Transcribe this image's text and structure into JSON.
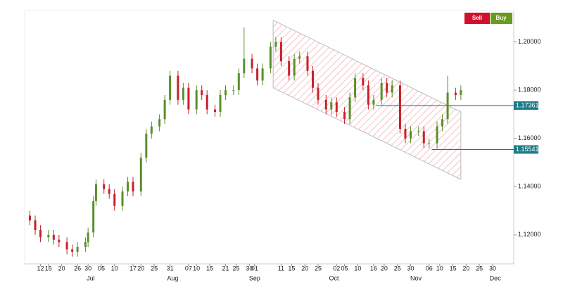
{
  "chart_data": {
    "type": "candlestick",
    "buttons": [
      "Sell",
      "Buy"
    ],
    "up_color": "#5a8f29",
    "down_color": "#c8202a",
    "x": [
      "Jun 8",
      "Jun 10",
      "Jun 12",
      "Jun 15",
      "Jun 17",
      "Jun 19",
      "Jun 22",
      "Jun 24",
      "Jun 26",
      "Jun 29",
      "Jun 30",
      "Jul 2",
      "Jul 3",
      "Jul 6",
      "Jul 8",
      "Jul 10",
      "Jul 13",
      "Jul 15",
      "Jul 17",
      "Jul 20",
      "Jul 22",
      "Jul 24",
      "Jul 27",
      "Jul 29",
      "Jul 31",
      "Aug 3",
      "Aug 5",
      "Aug 7",
      "Aug 10",
      "Aug 12",
      "Aug 14",
      "Aug 17",
      "Aug 19",
      "Aug 21",
      "Aug 24",
      "Aug 26",
      "Aug 28",
      "Aug 31",
      "Sep 2",
      "Sep 4",
      "Sep 7",
      "Sep 9",
      "Sep 11",
      "Sep 14",
      "Sep 16",
      "Sep 18",
      "Sep 21",
      "Sep 23",
      "Sep 25",
      "Sep 28",
      "Sep 30",
      "Oct 2",
      "Oct 5",
      "Oct 7",
      "Oct 9",
      "Oct 12",
      "Oct 14",
      "Oct 16",
      "Oct 19",
      "Oct 21",
      "Oct 23",
      "Oct 26",
      "Oct 28",
      "Oct 30",
      "Nov 2",
      "Nov 4",
      "Nov 6",
      "Nov 9",
      "Nov 11",
      "Nov 13",
      "Nov 16",
      "Nov 18"
    ],
    "open": [
      1.128,
      1.126,
      1.122,
      1.119,
      1.12,
      1.118,
      1.117,
      1.114,
      1.113,
      1.115,
      1.117,
      1.121,
      1.134,
      1.141,
      1.139,
      1.137,
      1.132,
      1.138,
      1.142,
      1.138,
      1.152,
      1.162,
      1.165,
      1.168,
      1.176,
      1.186,
      1.176,
      1.181,
      1.172,
      1.18,
      1.178,
      1.172,
      1.171,
      1.178,
      1.18,
      1.18,
      1.187,
      1.193,
      1.189,
      1.184,
      1.189,
      1.198,
      1.2,
      1.192,
      1.186,
      1.193,
      1.194,
      1.188,
      1.181,
      1.176,
      1.172,
      1.175,
      1.171,
      1.168,
      1.177,
      1.185,
      1.182,
      1.174,
      1.176,
      1.183,
      1.179,
      1.182,
      1.164,
      1.16,
      1.163,
      1.163,
      1.158,
      1.158,
      1.165,
      1.168,
      1.179,
      1.178
    ],
    "high": [
      1.13,
      1.128,
      1.124,
      1.122,
      1.122,
      1.12,
      1.119,
      1.116,
      1.117,
      1.119,
      1.123,
      1.136,
      1.143,
      1.143,
      1.141,
      1.139,
      1.14,
      1.144,
      1.144,
      1.154,
      1.164,
      1.167,
      1.17,
      1.178,
      1.188,
      1.188,
      1.183,
      1.183,
      1.182,
      1.182,
      1.18,
      1.174,
      1.18,
      1.182,
      1.182,
      1.189,
      1.206,
      1.195,
      1.191,
      1.191,
      1.2,
      1.202,
      1.202,
      1.194,
      1.195,
      1.196,
      1.196,
      1.19,
      1.183,
      1.178,
      1.177,
      1.177,
      1.173,
      1.179,
      1.187,
      1.187,
      1.184,
      1.178,
      1.185,
      1.185,
      1.184,
      1.184,
      1.166,
      1.165,
      1.165,
      1.165,
      1.16,
      1.167,
      1.17,
      1.186,
      1.181,
      1.182
    ],
    "low": [
      1.124,
      1.12,
      1.117,
      1.117,
      1.116,
      1.115,
      1.112,
      1.111,
      1.111,
      1.113,
      1.115,
      1.119,
      1.132,
      1.137,
      1.135,
      1.13,
      1.13,
      1.136,
      1.136,
      1.136,
      1.15,
      1.16,
      1.163,
      1.166,
      1.174,
      1.174,
      1.174,
      1.17,
      1.17,
      1.176,
      1.17,
      1.169,
      1.169,
      1.176,
      1.178,
      1.178,
      1.185,
      1.187,
      1.182,
      1.182,
      1.187,
      1.196,
      1.19,
      1.184,
      1.184,
      1.191,
      1.186,
      1.179,
      1.174,
      1.17,
      1.17,
      1.169,
      1.166,
      1.166,
      1.175,
      1.18,
      1.172,
      1.172,
      1.174,
      1.177,
      1.177,
      1.162,
      1.158,
      1.158,
      1.161,
      1.156,
      1.156,
      1.156,
      1.163,
      1.166,
      1.176,
      1.176
    ],
    "close": [
      1.126,
      1.122,
      1.119,
      1.12,
      1.118,
      1.117,
      1.114,
      1.113,
      1.115,
      1.117,
      1.121,
      1.134,
      1.141,
      1.139,
      1.137,
      1.132,
      1.138,
      1.142,
      1.138,
      1.152,
      1.162,
      1.165,
      1.168,
      1.176,
      1.186,
      1.176,
      1.181,
      1.172,
      1.18,
      1.178,
      1.172,
      1.171,
      1.178,
      1.18,
      1.18,
      1.187,
      1.193,
      1.189,
      1.184,
      1.189,
      1.198,
      1.2,
      1.192,
      1.186,
      1.193,
      1.194,
      1.188,
      1.181,
      1.176,
      1.172,
      1.175,
      1.171,
      1.168,
      1.177,
      1.185,
      1.182,
      1.174,
      1.176,
      1.183,
      1.179,
      1.182,
      1.164,
      1.16,
      1.163,
      1.163,
      1.158,
      1.158,
      1.165,
      1.168,
      1.179,
      1.178,
      1.18
    ],
    "xlim": [
      "Jun 6",
      "Dec 8"
    ],
    "ylim": [
      1.108,
      1.213
    ],
    "yticks": [
      {
        "value": 1.12,
        "label": "1.12000"
      },
      {
        "value": 1.14,
        "label": "1.14000"
      },
      {
        "value": 1.16,
        "label": "1.16000"
      },
      {
        "value": 1.18,
        "label": "1.18000"
      },
      {
        "value": 1.2,
        "label": "1.20000"
      }
    ],
    "xticks": [
      {
        "value": "Jun 12",
        "label": "12"
      },
      {
        "value": "Jun 15",
        "label": "15"
      },
      {
        "value": "Jun 20",
        "label": "20"
      },
      {
        "value": "Jun 26",
        "label": "26"
      },
      {
        "value": "Jun 30",
        "label": "30"
      },
      {
        "value": "Jul 5",
        "label": "05"
      },
      {
        "value": "Jul 10",
        "label": "10"
      },
      {
        "value": "Jul 17",
        "label": "17"
      },
      {
        "value": "Jul 20",
        "label": "20"
      },
      {
        "value": "Jul 25",
        "label": "25"
      },
      {
        "value": "Jul 31",
        "label": "31"
      },
      {
        "value": "Aug 7",
        "label": "07"
      },
      {
        "value": "Aug 10",
        "label": "10"
      },
      {
        "value": "Aug 15",
        "label": "15"
      },
      {
        "value": "Aug 21",
        "label": "21"
      },
      {
        "value": "Aug 25",
        "label": "25"
      },
      {
        "value": "Aug 30",
        "label": "30"
      },
      {
        "value": "Sep 1",
        "label": "01"
      },
      {
        "value": "Sep 11",
        "label": "11"
      },
      {
        "value": "Sep 15",
        "label": "15"
      },
      {
        "value": "Sep 20",
        "label": "20"
      },
      {
        "value": "Sep 25",
        "label": "25"
      },
      {
        "value": "Oct 2",
        "label": "02"
      },
      {
        "value": "Oct 5",
        "label": "05"
      },
      {
        "value": "Oct 10",
        "label": "10"
      },
      {
        "value": "Oct 16",
        "label": "16"
      },
      {
        "value": "Oct 20",
        "label": "20"
      },
      {
        "value": "Oct 25",
        "label": "25"
      },
      {
        "value": "Oct 30",
        "label": "30"
      },
      {
        "value": "Nov 6",
        "label": "06"
      },
      {
        "value": "Nov 10",
        "label": "10"
      },
      {
        "value": "Nov 15",
        "label": "15"
      },
      {
        "value": "Nov 20",
        "label": "20"
      },
      {
        "value": "Nov 25",
        "label": "25"
      },
      {
        "value": "Nov 30",
        "label": "30"
      }
    ],
    "month_ticks": [
      {
        "value": "Jul 1",
        "label": "Jul"
      },
      {
        "value": "Aug 1",
        "label": "Aug"
      },
      {
        "value": "Sep 1",
        "label": "Sep"
      },
      {
        "value": "Oct 1",
        "label": "Oct"
      },
      {
        "value": "Nov 1",
        "label": "Nov"
      },
      {
        "value": "Dec 1",
        "label": "Dec"
      }
    ],
    "channel": {
      "start": "Sep 8",
      "end": "Nov 18",
      "upper": [
        1.209,
        1.171
      ],
      "lower": [
        1.181,
        1.143
      ],
      "color": "#e8707a"
    },
    "levels": [
      {
        "value": 1.17361,
        "start": "Oct 17"
      },
      {
        "value": 1.15541,
        "start": "Nov 7"
      }
    ],
    "level_color": "#1e7b85"
  }
}
